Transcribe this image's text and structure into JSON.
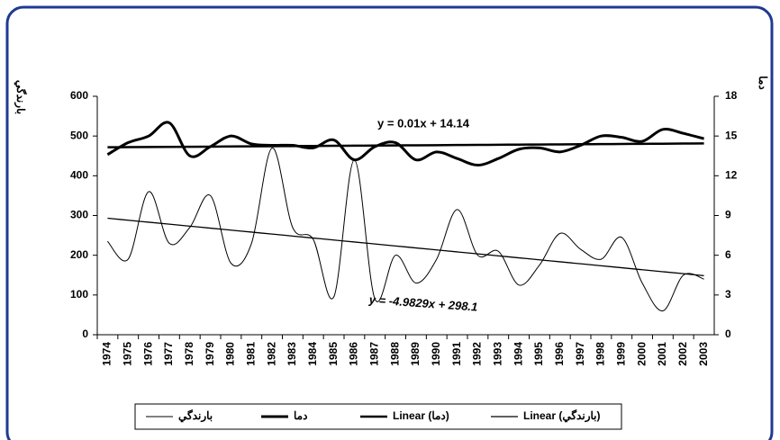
{
  "chart_data": {
    "type": "line",
    "y_label": "بارندگي",
    "y2_label": "دما",
    "annotations": [
      "y = 0.01x + 14.14",
      "y = -4.9829x + 298.1"
    ],
    "categories": [
      "1974",
      "1975",
      "1976",
      "1977",
      "1978",
      "1979",
      "1980",
      "1981",
      "1982",
      "1983",
      "1984",
      "1985",
      "1986",
      "1987",
      "1988",
      "1989",
      "1990",
      "1991",
      "1992",
      "1993",
      "1994",
      "1995",
      "1996",
      "1997",
      "1998",
      "1999",
      "2000",
      "2001",
      "2002",
      "2003"
    ],
    "series": [
      {
        "name": "بارندگي",
        "color": "#000000",
        "line_width": 1,
        "axis": "y",
        "values": [
          235,
          190,
          360,
          230,
          270,
          350,
          180,
          230,
          470,
          270,
          240,
          95,
          440,
          90,
          200,
          130,
          190,
          315,
          200,
          210,
          125,
          175,
          255,
          215,
          190,
          245,
          130,
          60,
          150,
          140
        ]
      },
      {
        "name": "دما",
        "color": "#000000",
        "line_width": 3,
        "axis": "y2",
        "values": [
          13.6,
          14.5,
          15.0,
          16.0,
          13.5,
          14.2,
          15.0,
          14.4,
          14.3,
          14.3,
          14.1,
          14.7,
          13.2,
          14.2,
          14.5,
          13.2,
          13.8,
          13.3,
          12.8,
          13.3,
          14.0,
          14.1,
          13.8,
          14.3,
          15.0,
          14.9,
          14.6,
          15.5,
          15.2,
          14.8
        ]
      },
      {
        "name": "Linear (دما)",
        "color": "#000000",
        "line_width": 2.5,
        "axis": "y2",
        "values": [
          14.15,
          14.16,
          14.17,
          14.18,
          14.19,
          14.2,
          14.21,
          14.22,
          14.23,
          14.24,
          14.25,
          14.26,
          14.27,
          14.28,
          14.29,
          14.3,
          14.31,
          14.32,
          14.33,
          14.34,
          14.35,
          14.36,
          14.37,
          14.38,
          14.39,
          14.4,
          14.41,
          14.42,
          14.43,
          14.44
        ]
      },
      {
        "name": "Linear (بارندگي)",
        "color": "#000000",
        "line_width": 1.3,
        "axis": "y",
        "values": [
          293.12,
          288.13,
          283.15,
          278.17,
          273.19,
          268.2,
          263.22,
          258.24,
          253.25,
          248.27,
          243.29,
          238.31,
          233.32,
          228.34,
          223.36,
          218.37,
          213.39,
          208.41,
          203.42,
          198.44,
          193.46,
          188.48,
          183.49,
          178.51,
          173.53,
          168.54,
          163.56,
          158.58,
          153.6,
          148.61
        ]
      }
    ],
    "ylim": [
      0,
      600
    ],
    "yticks": [
      0,
      100,
      200,
      300,
      400,
      500,
      600
    ],
    "y2lim": [
      0,
      18
    ],
    "y2ticks": [
      0,
      3,
      6,
      9,
      12,
      15,
      18
    ],
    "smooth": true,
    "grid": false
  }
}
